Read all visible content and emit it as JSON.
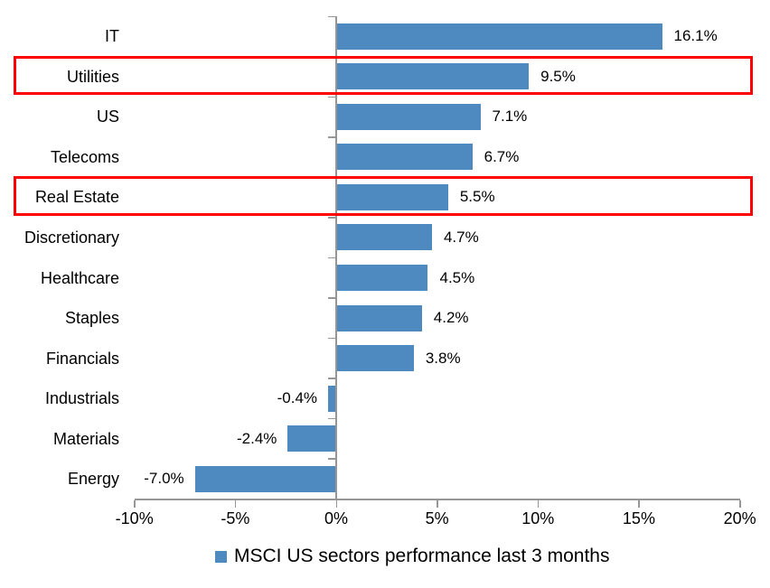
{
  "chart_data": {
    "type": "bar",
    "orientation": "horizontal",
    "categories": [
      "IT",
      "Utilities",
      "US",
      "Telecoms",
      "Real Estate",
      "Discretionary",
      "Healthcare",
      "Staples",
      "Financials",
      "Industrials",
      "Materials",
      "Energy"
    ],
    "values": [
      16.1,
      9.5,
      7.1,
      6.7,
      5.5,
      4.7,
      4.5,
      4.2,
      3.8,
      -0.4,
      -2.4,
      -7.0
    ],
    "value_labels": [
      "16.1%",
      "9.5%",
      "7.1%",
      "6.7%",
      "5.5%",
      "4.7%",
      "4.5%",
      "4.2%",
      "3.8%",
      "-0.4%",
      "-2.4%",
      "-7.0%"
    ],
    "highlighted_categories": [
      "Utilities",
      "Real Estate"
    ],
    "x_ticks": [
      "-10%",
      "-5%",
      "0%",
      "5%",
      "10%",
      "15%",
      "20%"
    ],
    "x_tick_values": [
      -10,
      -5,
      0,
      5,
      10,
      15,
      20
    ],
    "xlim": [
      -10,
      20
    ],
    "grid": "off",
    "legend": "MSCI US sectors performance last 3 months",
    "legend_position": "bottom",
    "bar_color": "#4E8ABF",
    "highlight_color": "#FE0000",
    "axis_color": "#969696",
    "text_color": "#000000"
  }
}
